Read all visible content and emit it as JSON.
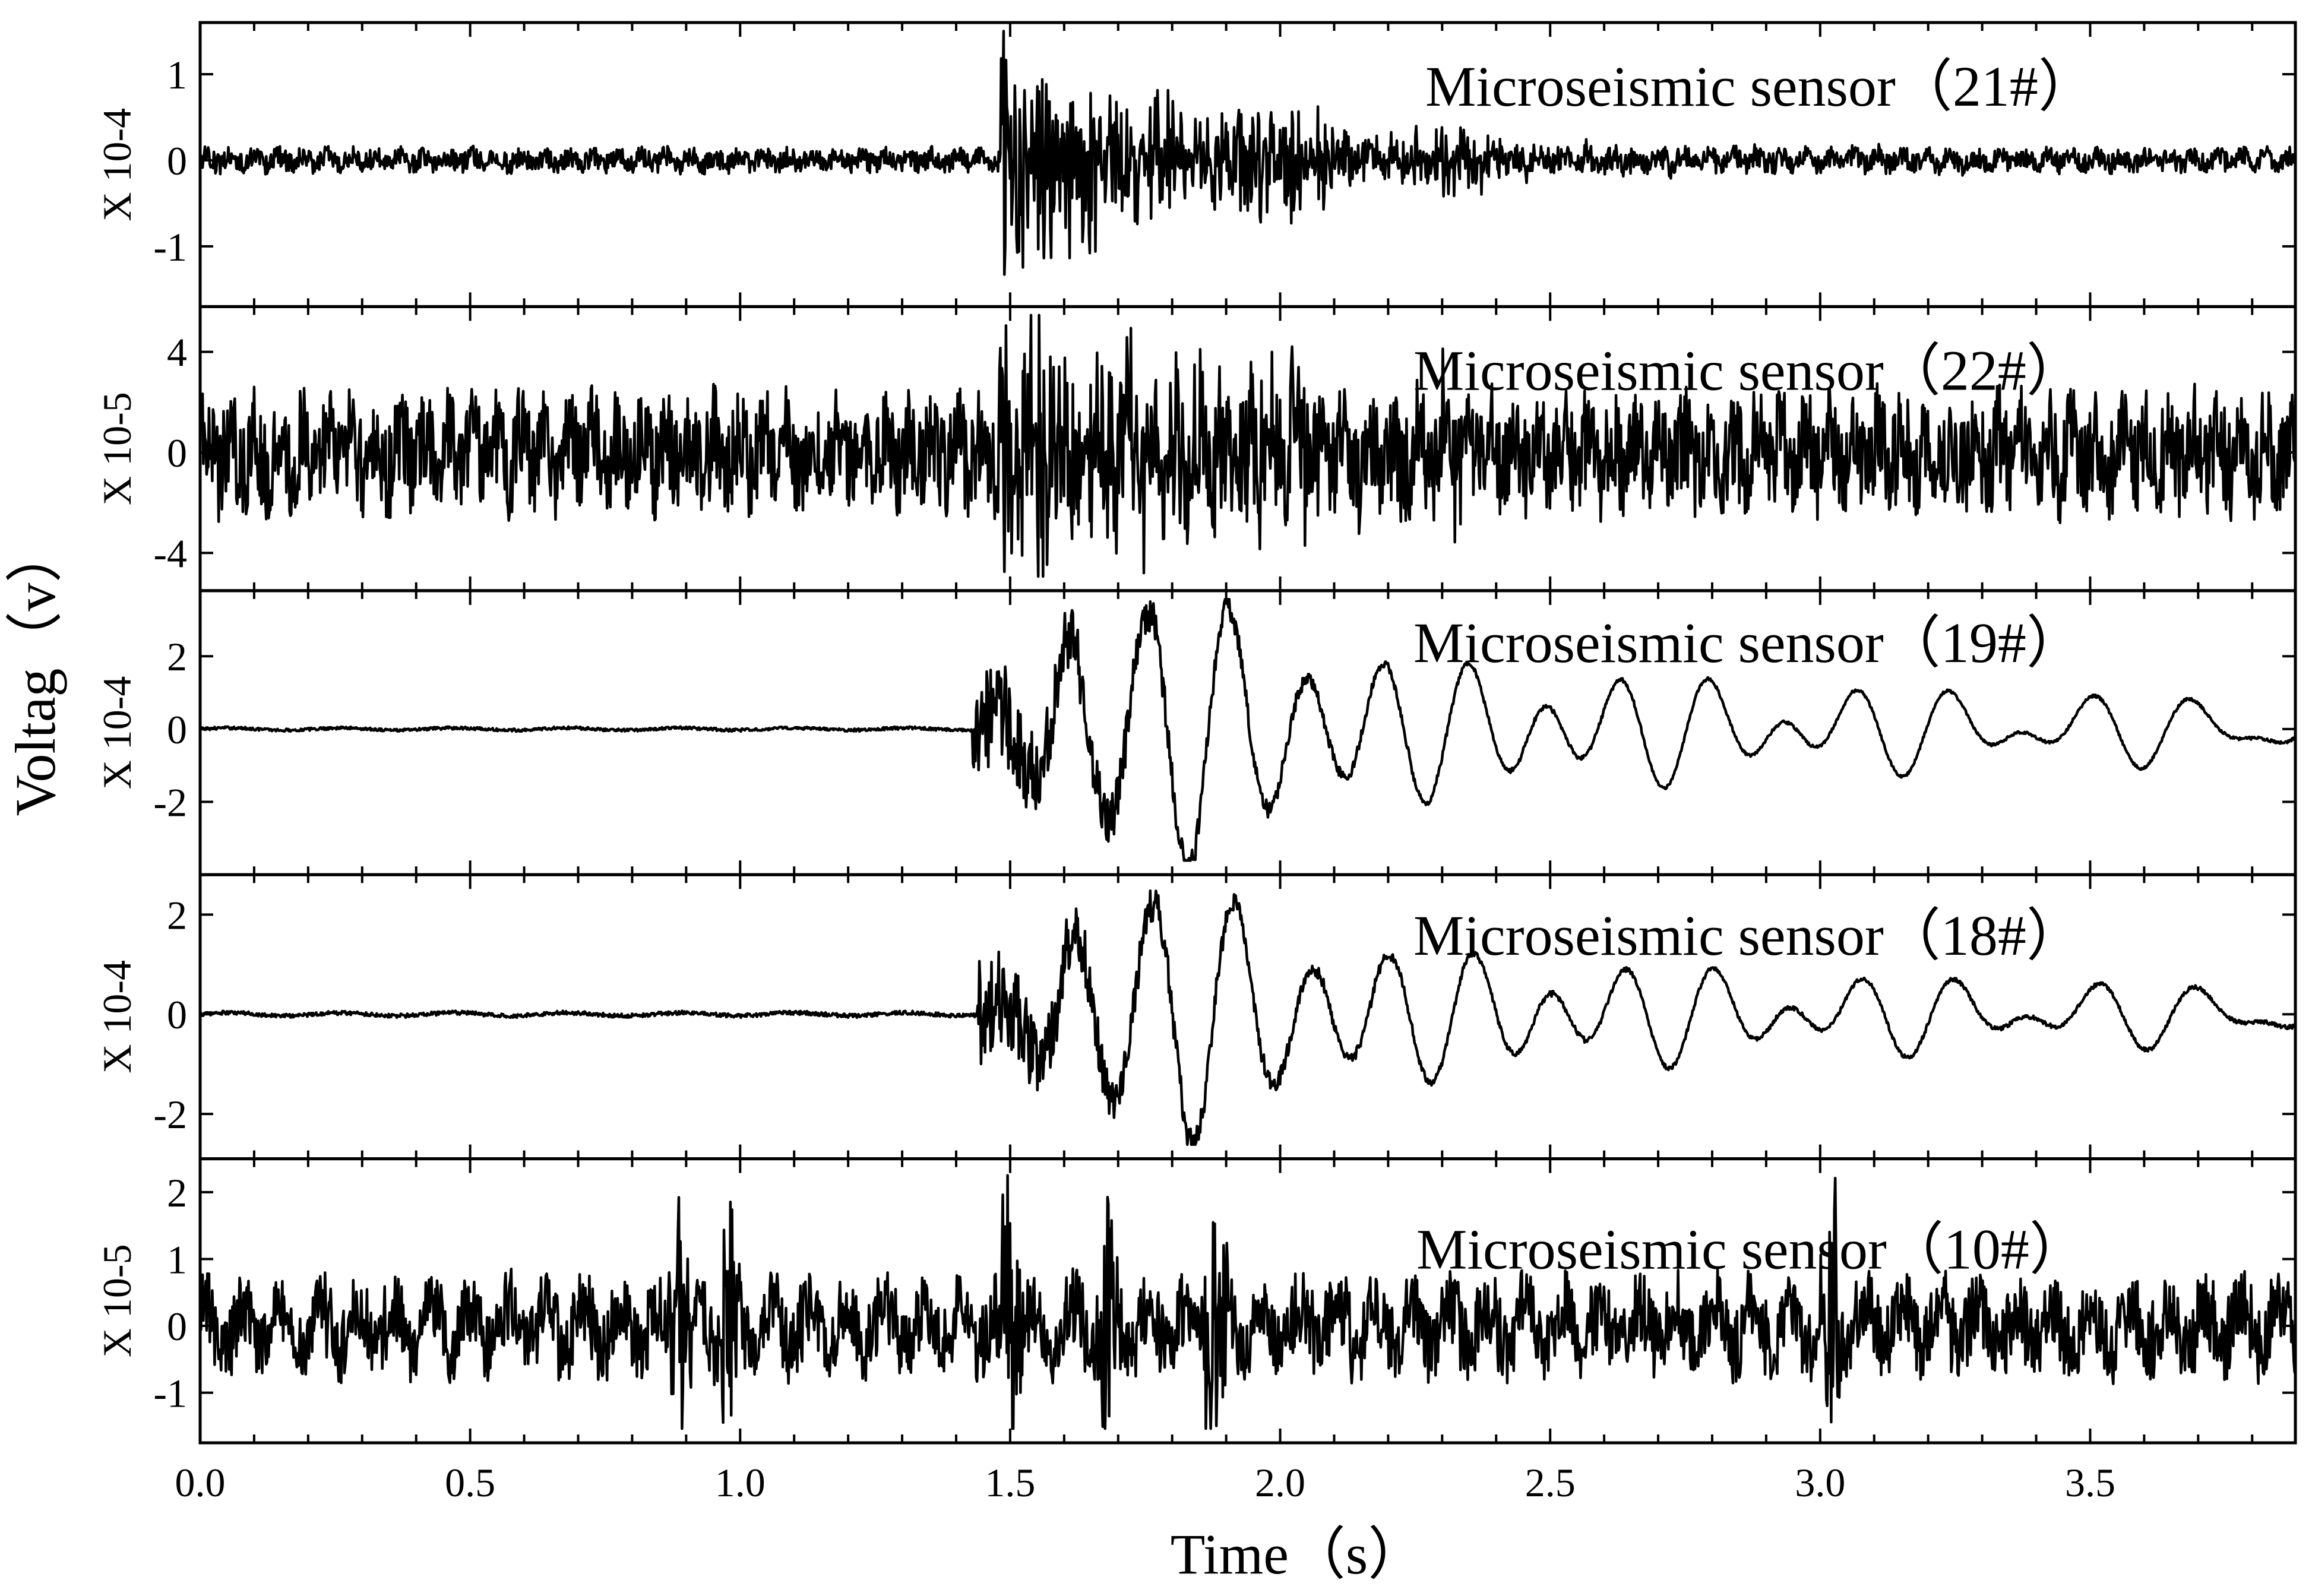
{
  "chart_data": {
    "type": "line",
    "xlabel": "Time（s）",
    "ylabel": "Voltag（v）",
    "xlim": [
      0.0,
      3.88
    ],
    "x_ticks": [
      "0.0",
      "0.5",
      "1.0",
      "1.5",
      "2.0",
      "2.5",
      "3.0",
      "3.5"
    ],
    "grid": false,
    "panels": [
      {
        "sensor_label": "Microseismic sensor（21#）",
        "scale_label": "X 10-4",
        "ylim": [
          -1.7,
          1.6
        ],
        "yticks": [
          -1,
          0,
          1
        ],
        "ytick_labels": [
          "-1",
          "0",
          "1"
        ],
        "onset_s": 1.48,
        "peak_amplitude": 1.5,
        "noise_amplitude": 0.12,
        "waveform": "high-frequency burst"
      },
      {
        "sensor_label": "Microseismic sensor（22#）",
        "scale_label": "X 10-5",
        "ylim": [
          -5.5,
          5.8
        ],
        "yticks": [
          -4,
          0,
          4
        ],
        "ytick_labels": [
          "-4",
          "0",
          "4"
        ],
        "onset_s": 1.48,
        "peak_amplitude": 5.3,
        "noise_amplitude": 2.0,
        "waveform": "high-frequency burst"
      },
      {
        "sensor_label": "Microseismic sensor（19#）",
        "scale_label": "X 10-4",
        "ylim": [
          -4.0,
          3.8
        ],
        "yticks": [
          -2,
          0,
          2
        ],
        "ytick_labels": [
          "-2",
          "0",
          "2"
        ],
        "onset_s": 1.43,
        "peak_amplitude": 3.7,
        "noise_amplitude": 0.1,
        "waveform": "low-frequency oscillation"
      },
      {
        "sensor_label": "Microseismic sensor（18#）",
        "scale_label": "X 10-4",
        "ylim": [
          -2.9,
          2.8
        ],
        "yticks": [
          -2,
          0,
          2
        ],
        "ytick_labels": [
          "-2",
          "0",
          "2"
        ],
        "onset_s": 1.44,
        "peak_amplitude": 2.5,
        "noise_amplitude": 0.1,
        "waveform": "low-frequency oscillation"
      },
      {
        "sensor_label": "Microseismic sensor（10#）",
        "scale_label": "X 10-5",
        "ylim": [
          -1.75,
          2.5
        ],
        "yticks": [
          -1,
          0,
          1,
          2
        ],
        "ytick_labels": [
          "-1",
          "0",
          "1",
          "2"
        ],
        "onset_s": null,
        "peak_amplitude": 2.2,
        "noise_amplitude": 0.55,
        "waveform": "broadband noise with spikes"
      }
    ]
  }
}
